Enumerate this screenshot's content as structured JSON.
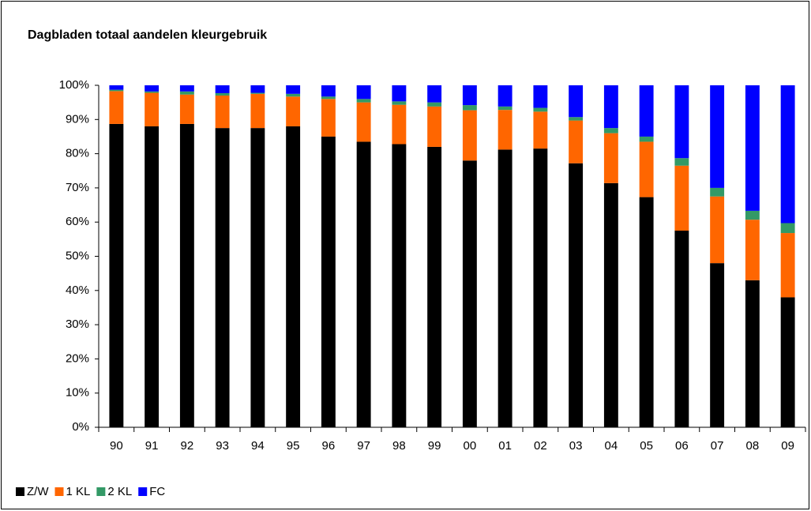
{
  "chart_data": {
    "type": "stacked_bar",
    "title": "Dagbladen totaal aandelen kleurgebruik",
    "categories": [
      "90",
      "91",
      "92",
      "93",
      "94",
      "95",
      "96",
      "97",
      "98",
      "99",
      "00",
      "01",
      "02",
      "03",
      "04",
      "05",
      "06",
      "07",
      "08",
      "09"
    ],
    "series": [
      {
        "name": "Z/W",
        "color": "#000000",
        "values": [
          88.7,
          88,
          88.7,
          87.5,
          87.5,
          88,
          85,
          83.5,
          82.8,
          82,
          78,
          81.2,
          81.5,
          77.2,
          71.4,
          67.3,
          57.5,
          48,
          43,
          38
        ]
      },
      {
        "name": "1 KL",
        "color": "#ff6600",
        "values": [
          9.6,
          9.8,
          8.6,
          9.5,
          10,
          8.7,
          11,
          11.5,
          11.5,
          11.8,
          14.7,
          11.6,
          10.8,
          12.5,
          14.6,
          16.2,
          19,
          19.5,
          17.7,
          18.8
        ]
      },
      {
        "name": "2 KL",
        "color": "#339966",
        "values": [
          0.4,
          0.4,
          0.9,
          0.7,
          0.3,
          0.8,
          0.7,
          1,
          1,
          1.2,
          1.5,
          1,
          1.1,
          1,
          1.5,
          1.5,
          2.2,
          2.5,
          2.6,
          2.9
        ]
      },
      {
        "name": "FC",
        "color": "#0000ff",
        "values": [
          1.3,
          1.8,
          1.8,
          2.3,
          2.2,
          2.5,
          3.3,
          4,
          4.7,
          5,
          5.8,
          6.2,
          6.6,
          9.3,
          12.5,
          15,
          21.3,
          30,
          36.7,
          40.3
        ]
      }
    ],
    "ylim": [
      0,
      100
    ],
    "yticks": [
      {
        "value": 0,
        "label": "0%"
      },
      {
        "value": 10,
        "label": "10%"
      },
      {
        "value": 20,
        "label": "20%"
      },
      {
        "value": 30,
        "label": "30%"
      },
      {
        "value": 40,
        "label": "40%"
      },
      {
        "value": 50,
        "label": "50%"
      },
      {
        "value": 60,
        "label": "60%"
      },
      {
        "value": 70,
        "label": "70%"
      },
      {
        "value": 80,
        "label": "80%"
      },
      {
        "value": 90,
        "label": "90%"
      },
      {
        "value": 100,
        "label": "100%"
      }
    ],
    "grid": false,
    "legend": "bottom-left"
  }
}
